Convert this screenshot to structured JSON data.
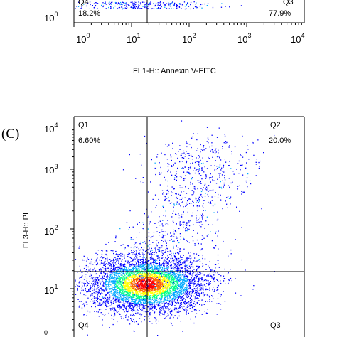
{
  "panel_b_partial": {
    "quadrants": {
      "q4_name": "Q4",
      "q4_value": "18.2%",
      "q3_name": "Q3",
      "q3_value": "77.9%"
    },
    "y_tick_visible": {
      "base": "10",
      "exp": "0"
    },
    "x_ticks": [
      {
        "base": "10",
        "exp": "0"
      },
      {
        "base": "10",
        "exp": "1"
      },
      {
        "base": "10",
        "exp": "2"
      },
      {
        "base": "10",
        "exp": "3"
      },
      {
        "base": "10",
        "exp": "4"
      }
    ],
    "x_axis_title": "FL1-H:: Annexin V-FITC"
  },
  "panel_c": {
    "panel_label": "(C)",
    "y_axis_title": "FL3-H:: PI",
    "y_ticks": [
      {
        "base": "10",
        "exp": "4"
      },
      {
        "base": "10",
        "exp": "3"
      },
      {
        "base": "10",
        "exp": "2"
      },
      {
        "base": "10",
        "exp": "1"
      },
      {
        "base": "",
        "exp": "0"
      }
    ],
    "quadrants": {
      "q1_name": "Q1",
      "q1_value": "6.60%",
      "q2_name": "Q2",
      "q2_value": "20.0%",
      "q4_name": "Q4",
      "q3_name": "Q3"
    }
  },
  "chart_data": [
    {
      "type": "scatter",
      "subtype": "flow-cytometry-quadrant-plot",
      "xlabel": "FL1-H:: Annexin V-FITC",
      "xscale": "log",
      "xlim": [
        1,
        10000
      ],
      "quadrant_percentages": {
        "Q4": 18.2,
        "Q3": 77.9
      },
      "x_tick_labels": [
        "10^0",
        "10^1",
        "10^2",
        "10^3",
        "10^4"
      ]
    },
    {
      "type": "scatter",
      "subtype": "flow-cytometry-quadrant-plot",
      "panel": "(C)",
      "ylabel": "FL3-H:: PI",
      "yscale": "log",
      "ylim": [
        1,
        10000
      ],
      "xscale": "log",
      "quadrant_gate": {
        "x": 18,
        "y": 20
      },
      "quadrant_percentages": {
        "Q1": 6.6,
        "Q2": 20.0
      },
      "y_tick_labels": [
        "10^4",
        "10^3",
        "10^2",
        "10^1",
        "10^0"
      ],
      "colormap": [
        "#0000ff",
        "#00aaff",
        "#00ff88",
        "#ffff00",
        "#ff6600",
        "#ff0000"
      ],
      "population_clusters": [
        {
          "x_center": 18,
          "y_center": 12,
          "density": "high"
        },
        {
          "x_center": 200,
          "y_center": 1200,
          "density": "low"
        }
      ]
    }
  ]
}
